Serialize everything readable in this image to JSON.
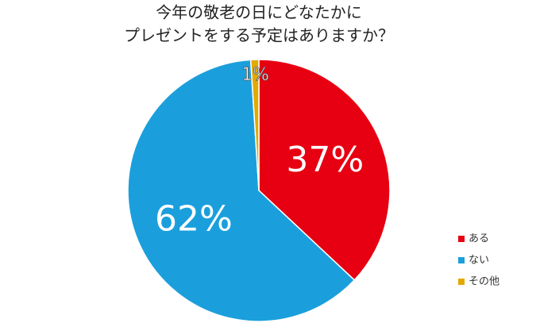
{
  "chart_data": {
    "type": "pie",
    "title": [
      "今年の敬老の日にどなたかに",
      "プレゼントをする予定はありますか？"
    ],
    "categories": [
      "ある",
      "ない",
      "その他"
    ],
    "values": [
      37,
      62,
      1
    ],
    "value_labels": [
      "37%",
      "62%",
      "1%"
    ],
    "colors": [
      "#e60012",
      "#1a9fdc",
      "#e3a900"
    ],
    "legend": "bottom-right"
  }
}
